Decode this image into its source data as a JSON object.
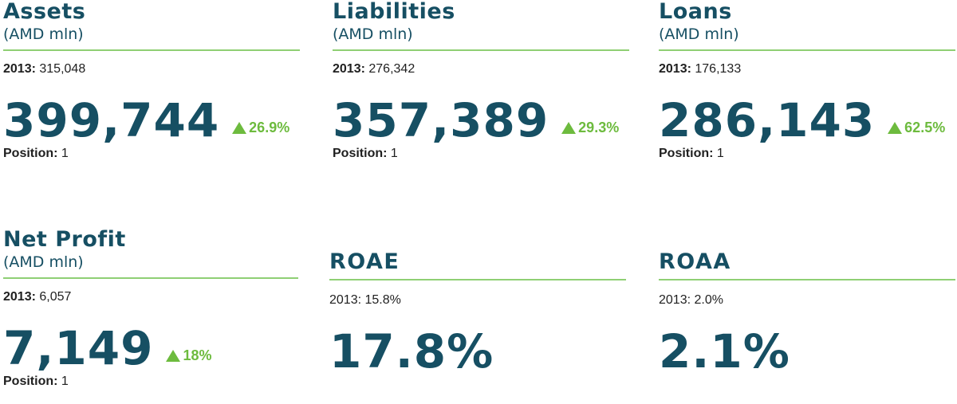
{
  "colors": {
    "heading": "#164f63",
    "accent_green": "#6dbb3e",
    "rule": "#8fcf74",
    "text": "#1f1f1f"
  },
  "cards": [
    {
      "title": "Assets",
      "unit": "(AMD mln)",
      "prev_label": "2013:",
      "prev_value": "315,048",
      "value": "399,744",
      "change_icon": "triangle-up-icon",
      "change": "26.9%",
      "position_label": "Position:",
      "position_value": "1"
    },
    {
      "title": "Liabilities",
      "unit": "(AMD mln)",
      "prev_label": "2013:",
      "prev_value": "276,342",
      "value": "357,389",
      "change_icon": "triangle-up-icon",
      "change": "29.3%",
      "position_label": "Position:",
      "position_value": "1"
    },
    {
      "title": "Loans",
      "unit": "(AMD mln)",
      "prev_label": "2013:",
      "prev_value": "176,133",
      "value": "286,143",
      "change_icon": "triangle-up-icon",
      "change": "62.5%",
      "position_label": "Position:",
      "position_value": "1"
    },
    {
      "title": "Net Profit",
      "unit": "(AMD mln)",
      "prev_label": "2013:",
      "prev_value": "6,057",
      "value": "7,149",
      "change_icon": "triangle-up-icon",
      "change": "18%",
      "position_label": "Position:",
      "position_value": "1"
    },
    {
      "title": "ROAE",
      "prev_text": "2013: 15.8%",
      "value": "17.8%"
    },
    {
      "title": "ROAA",
      "prev_text": "2013: 2.0%",
      "value": "2.1%"
    }
  ]
}
